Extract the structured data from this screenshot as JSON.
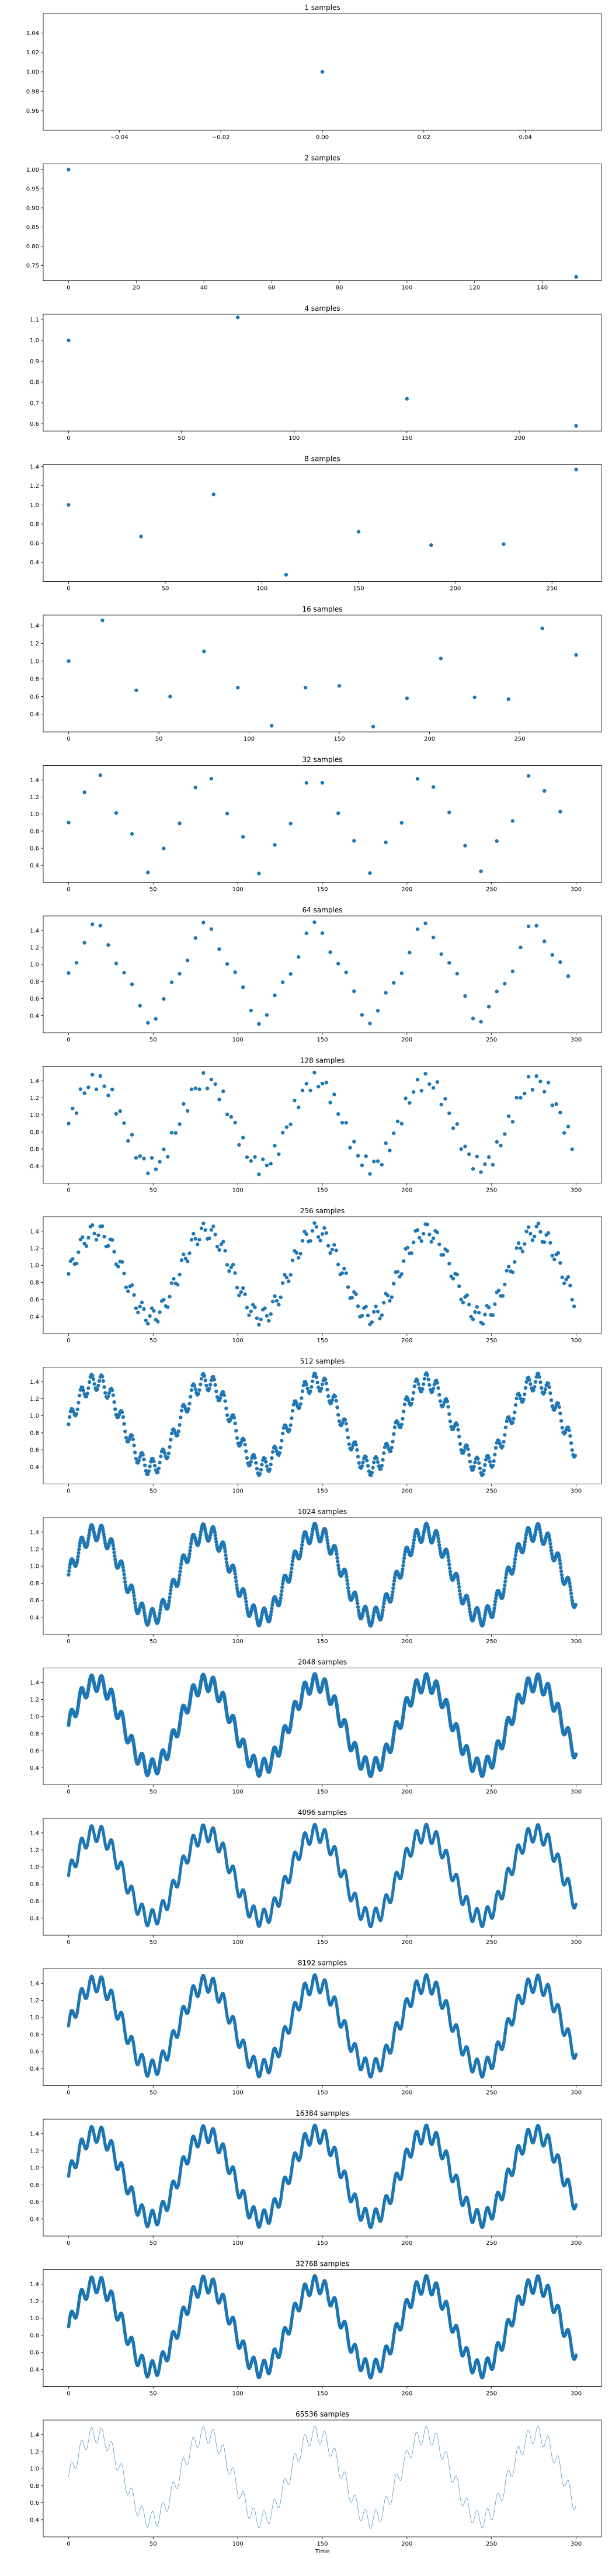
{
  "chart_data": [
    {
      "type": "scatter",
      "title": "1 samples",
      "n": 1,
      "xlim": [
        -0.055,
        0.055
      ],
      "ylim": [
        0.94,
        1.06
      ],
      "xticks": [
        -0.04,
        -0.02,
        0.0,
        0.02,
        0.04
      ],
      "xtick_labels": [
        "−0.04",
        "−0.02",
        "0.00",
        "0.02",
        "0.04"
      ],
      "yticks": [
        0.96,
        0.98,
        1.0,
        1.02,
        1.04
      ],
      "ytick_labels": [
        "0.96",
        "0.98",
        "1.00",
        "1.02",
        "1.04"
      ],
      "points": [
        [
          0,
          1.0
        ]
      ],
      "xlabel": "",
      "ylabel": ""
    },
    {
      "type": "scatter",
      "title": "2 samples",
      "n": 2,
      "xlim": [
        -7.5,
        157.5
      ],
      "ylim": [
        0.71,
        1.015
      ],
      "xticks": [
        0,
        20,
        40,
        60,
        80,
        100,
        120,
        140
      ],
      "xtick_labels": [
        "0",
        "20",
        "40",
        "60",
        "80",
        "100",
        "120",
        "140"
      ],
      "yticks": [
        0.75,
        0.8,
        0.85,
        0.9,
        0.95,
        1.0
      ],
      "ytick_labels": [
        "0.75",
        "0.80",
        "0.85",
        "0.90",
        "0.95",
        "1.00"
      ],
      "points": [
        [
          0,
          1.0
        ],
        [
          150,
          0.72
        ]
      ],
      "xlabel": "",
      "ylabel": ""
    },
    {
      "type": "scatter",
      "title": "4 samples",
      "n": 4,
      "xlim": [
        -11.25,
        236.25
      ],
      "ylim": [
        0.565,
        1.125
      ],
      "xticks": [
        0,
        50,
        100,
        150,
        200
      ],
      "xtick_labels": [
        "0",
        "50",
        "100",
        "150",
        "200"
      ],
      "yticks": [
        0.6,
        0.7,
        0.8,
        0.9,
        1.0,
        1.1
      ],
      "ytick_labels": [
        "0.6",
        "0.7",
        "0.8",
        "0.9",
        "1.0",
        "1.1"
      ],
      "points": [
        [
          0,
          1.0
        ],
        [
          75,
          1.11
        ],
        [
          150,
          0.72
        ],
        [
          225,
          0.59
        ]
      ],
      "xlabel": "",
      "ylabel": ""
    },
    {
      "type": "scatter",
      "title": "8 samples",
      "n": 8,
      "xlim": [
        -13.1,
        275.6
      ],
      "ylim": [
        0.2,
        1.42
      ],
      "xticks": [
        0,
        50,
        100,
        150,
        200,
        250
      ],
      "xtick_labels": [
        "0",
        "50",
        "100",
        "150",
        "200",
        "250"
      ],
      "yticks": [
        0.4,
        0.6,
        0.8,
        1.0,
        1.2,
        1.4
      ],
      "ytick_labels": [
        "0.4",
        "0.6",
        "0.8",
        "1.0",
        "1.2",
        "1.4"
      ],
      "points": [
        [
          0,
          1.0
        ],
        [
          37.5,
          0.67
        ],
        [
          75,
          1.11
        ],
        [
          112.5,
          0.27
        ],
        [
          150,
          0.72
        ],
        [
          187.5,
          0.58
        ],
        [
          225,
          0.59
        ],
        [
          262.5,
          1.37
        ]
      ],
      "xlabel": "",
      "ylabel": ""
    },
    {
      "type": "scatter",
      "title": "16 samples",
      "n": 16,
      "xlim": [
        -14.1,
        295.3
      ],
      "ylim": [
        0.2,
        1.52
      ],
      "xticks": [
        0,
        50,
        100,
        150,
        200,
        250
      ],
      "xtick_labels": [
        "0",
        "50",
        "100",
        "150",
        "200",
        "250"
      ],
      "yticks": [
        0.4,
        0.6,
        0.8,
        1.0,
        1.2,
        1.4
      ],
      "ytick_labels": [
        "0.4",
        "0.6",
        "0.8",
        "1.0",
        "1.2",
        "1.4"
      ],
      "points": [
        [
          0,
          1.0
        ],
        [
          18.75,
          1.46
        ],
        [
          37.5,
          0.67
        ],
        [
          56.25,
          0.6
        ],
        [
          75,
          1.11
        ],
        [
          93.75,
          0.7
        ],
        [
          112.5,
          0.27
        ],
        [
          131.25,
          0.7
        ],
        [
          150,
          0.72
        ],
        [
          168.75,
          0.26
        ],
        [
          187.5,
          0.58
        ],
        [
          206.25,
          1.03
        ],
        [
          225,
          0.59
        ],
        [
          243.75,
          0.57
        ],
        [
          262.5,
          1.37
        ],
        [
          281.25,
          1.07
        ]
      ],
      "xlabel": "",
      "ylabel": ""
    },
    {
      "type": "scatter",
      "title": "32 samples",
      "n": 32,
      "xticks": [
        0,
        50,
        100,
        150,
        200,
        250,
        300
      ],
      "xtick_labels": [
        "0",
        "50",
        "100",
        "150",
        "200",
        "250",
        "300"
      ],
      "yticks": [
        0.4,
        0.6,
        0.8,
        1.0,
        1.2,
        1.4
      ],
      "ytick_labels": [
        "0.4",
        "0.6",
        "0.8",
        "1.0",
        "1.2",
        "1.4"
      ],
      "xlabel": "",
      "ylabel": ""
    },
    {
      "type": "scatter",
      "title": "64 samples",
      "n": 64,
      "xticks": [
        0,
        50,
        100,
        150,
        200,
        250,
        300
      ],
      "xtick_labels": [
        "0",
        "50",
        "100",
        "150",
        "200",
        "250",
        "300"
      ],
      "yticks": [
        0.4,
        0.6,
        0.8,
        1.0,
        1.2,
        1.4
      ],
      "ytick_labels": [
        "0.4",
        "0.6",
        "0.8",
        "1.0",
        "1.2",
        "1.4"
      ],
      "xlabel": "",
      "ylabel": ""
    },
    {
      "type": "scatter",
      "title": "128 samples",
      "n": 128,
      "xticks": [
        0,
        50,
        100,
        150,
        200,
        250,
        300
      ],
      "xtick_labels": [
        "0",
        "50",
        "100",
        "150",
        "200",
        "250",
        "300"
      ],
      "yticks": [
        0.4,
        0.6,
        0.8,
        1.0,
        1.2,
        1.4
      ],
      "ytick_labels": [
        "0.4",
        "0.6",
        "0.8",
        "1.0",
        "1.2",
        "1.4"
      ],
      "xlabel": "",
      "ylabel": ""
    },
    {
      "type": "scatter",
      "title": "256 samples",
      "n": 256,
      "xticks": [
        0,
        50,
        100,
        150,
        200,
        250,
        300
      ],
      "xtick_labels": [
        "0",
        "50",
        "100",
        "150",
        "200",
        "250",
        "300"
      ],
      "yticks": [
        0.4,
        0.6,
        0.8,
        1.0,
        1.2,
        1.4
      ],
      "ytick_labels": [
        "0.4",
        "0.6",
        "0.8",
        "1.0",
        "1.2",
        "1.4"
      ],
      "xlabel": "",
      "ylabel": ""
    },
    {
      "type": "scatter",
      "title": "512 samples",
      "n": 512,
      "xticks": [
        0,
        50,
        100,
        150,
        200,
        250,
        300
      ],
      "xtick_labels": [
        "0",
        "50",
        "100",
        "150",
        "200",
        "250",
        "300"
      ],
      "yticks": [
        0.4,
        0.6,
        0.8,
        1.0,
        1.2,
        1.4
      ],
      "ytick_labels": [
        "0.4",
        "0.6",
        "0.8",
        "1.0",
        "1.2",
        "1.4"
      ],
      "xlabel": "",
      "ylabel": ""
    },
    {
      "type": "scatter",
      "title": "1024 samples",
      "n": 1024,
      "xticks": [
        0,
        50,
        100,
        150,
        200,
        250,
        300
      ],
      "xtick_labels": [
        "0",
        "50",
        "100",
        "150",
        "200",
        "250",
        "300"
      ],
      "yticks": [
        0.4,
        0.6,
        0.8,
        1.0,
        1.2,
        1.4
      ],
      "ytick_labels": [
        "0.4",
        "0.6",
        "0.8",
        "1.0",
        "1.2",
        "1.4"
      ],
      "xlabel": "",
      "ylabel": ""
    },
    {
      "type": "scatter",
      "title": "2048 samples",
      "n": 2048,
      "xticks": [
        0,
        50,
        100,
        150,
        200,
        250,
        300
      ],
      "xtick_labels": [
        "0",
        "50",
        "100",
        "150",
        "200",
        "250",
        "300"
      ],
      "yticks": [
        0.4,
        0.6,
        0.8,
        1.0,
        1.2,
        1.4
      ],
      "ytick_labels": [
        "0.4",
        "0.6",
        "0.8",
        "1.0",
        "1.2",
        "1.4"
      ],
      "xlabel": "",
      "ylabel": ""
    },
    {
      "type": "scatter",
      "title": "4096 samples",
      "n": 4096,
      "xticks": [
        0,
        50,
        100,
        150,
        200,
        250,
        300
      ],
      "xtick_labels": [
        "0",
        "50",
        "100",
        "150",
        "200",
        "250",
        "300"
      ],
      "yticks": [
        0.4,
        0.6,
        0.8,
        1.0,
        1.2,
        1.4
      ],
      "ytick_labels": [
        "0.4",
        "0.6",
        "0.8",
        "1.0",
        "1.2",
        "1.4"
      ],
      "xlabel": "",
      "ylabel": ""
    },
    {
      "type": "scatter",
      "title": "8192 samples",
      "n": 8192,
      "xticks": [
        0,
        50,
        100,
        150,
        200,
        250,
        300
      ],
      "xtick_labels": [
        "0",
        "50",
        "100",
        "150",
        "200",
        "250",
        "300"
      ],
      "yticks": [
        0.4,
        0.6,
        0.8,
        1.0,
        1.2,
        1.4
      ],
      "ytick_labels": [
        "0.4",
        "0.6",
        "0.8",
        "1.0",
        "1.2",
        "1.4"
      ],
      "xlabel": "",
      "ylabel": ""
    },
    {
      "type": "scatter",
      "title": "16384 samples",
      "n": 16384,
      "xticks": [
        0,
        50,
        100,
        150,
        200,
        250,
        300
      ],
      "xtick_labels": [
        "0",
        "50",
        "100",
        "150",
        "200",
        "250",
        "300"
      ],
      "yticks": [
        0.4,
        0.6,
        0.8,
        1.0,
        1.2,
        1.4
      ],
      "ytick_labels": [
        "0.4",
        "0.6",
        "0.8",
        "1.0",
        "1.2",
        "1.4"
      ],
      "xlabel": "",
      "ylabel": ""
    },
    {
      "type": "scatter",
      "title": "32768 samples",
      "n": 32768,
      "xticks": [
        0,
        50,
        100,
        150,
        200,
        250,
        300
      ],
      "xtick_labels": [
        "0",
        "50",
        "100",
        "150",
        "200",
        "250",
        "300"
      ],
      "yticks": [
        0.4,
        0.6,
        0.8,
        1.0,
        1.2,
        1.4
      ],
      "ytick_labels": [
        "0.4",
        "0.6",
        "0.8",
        "1.0",
        "1.2",
        "1.4"
      ],
      "xlabel": "",
      "ylabel": ""
    },
    {
      "type": "line",
      "title": "65536 samples",
      "n": 65536,
      "xticks": [
        0,
        50,
        100,
        150,
        200,
        250,
        300
      ],
      "xtick_labels": [
        "0",
        "50",
        "100",
        "150",
        "200",
        "250",
        "300"
      ],
      "yticks": [
        0.4,
        0.6,
        0.8,
        1.0,
        1.2,
        1.4
      ],
      "ytick_labels": [
        "0.4",
        "0.6",
        "0.8",
        "1.0",
        "1.2",
        "1.4"
      ],
      "xlabel": "Time",
      "ylabel": ""
    }
  ],
  "style": {
    "marker_color": "#1f77b4",
    "axes_color": "#000000"
  }
}
